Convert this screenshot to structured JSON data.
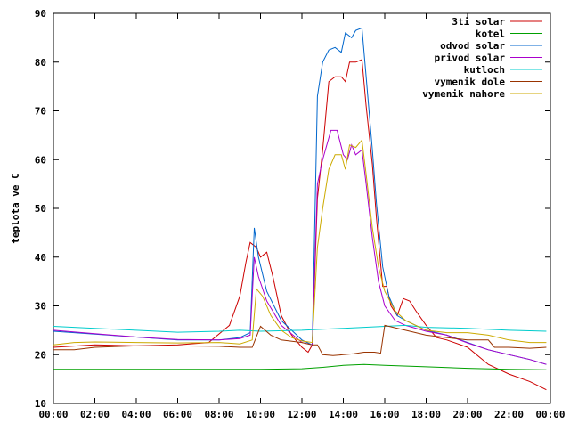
{
  "chart_data": {
    "type": "line",
    "title": "",
    "xlabel": "",
    "ylabel": "teplota ve C",
    "xlim": [
      0,
      24
    ],
    "ylim": [
      10,
      90
    ],
    "grid": false,
    "legend_position": "top-right",
    "x_ticks": [
      {
        "value": 0,
        "label": "00:00"
      },
      {
        "value": 2,
        "label": "02:00"
      },
      {
        "value": 4,
        "label": "04:00"
      },
      {
        "value": 6,
        "label": "06:00"
      },
      {
        "value": 8,
        "label": "08:00"
      },
      {
        "value": 10,
        "label": "10:00"
      },
      {
        "value": 12,
        "label": "12:00"
      },
      {
        "value": 14,
        "label": "14:00"
      },
      {
        "value": 16,
        "label": "16:00"
      },
      {
        "value": 18,
        "label": "18:00"
      },
      {
        "value": 20,
        "label": "20:00"
      },
      {
        "value": 22,
        "label": "22:00"
      },
      {
        "value": 24,
        "label": "00:00"
      }
    ],
    "y_ticks": [
      {
        "value": 10,
        "label": "10"
      },
      {
        "value": 20,
        "label": "20"
      },
      {
        "value": 30,
        "label": "30"
      },
      {
        "value": 40,
        "label": "40"
      },
      {
        "value": 50,
        "label": "50"
      },
      {
        "value": 60,
        "label": "60"
      },
      {
        "value": 70,
        "label": "70"
      },
      {
        "value": 80,
        "label": "80"
      },
      {
        "value": 90,
        "label": "90"
      }
    ],
    "series": [
      {
        "name": "3ti solar",
        "color": "#cc0000",
        "points": [
          [
            0,
            21.5
          ],
          [
            2,
            22
          ],
          [
            4,
            21.8
          ],
          [
            6,
            22
          ],
          [
            7.5,
            22.5
          ],
          [
            8.5,
            26
          ],
          [
            9,
            32
          ],
          [
            9.3,
            39
          ],
          [
            9.5,
            43
          ],
          [
            9.8,
            42
          ],
          [
            10,
            40
          ],
          [
            10.3,
            41
          ],
          [
            10.6,
            36
          ],
          [
            11,
            28
          ],
          [
            11.5,
            24
          ],
          [
            12,
            21.5
          ],
          [
            12.3,
            20.5
          ],
          [
            12.5,
            22
          ],
          [
            12.75,
            52
          ],
          [
            13,
            62
          ],
          [
            13.3,
            76
          ],
          [
            13.6,
            77
          ],
          [
            13.9,
            77
          ],
          [
            14.1,
            76
          ],
          [
            14.3,
            80
          ],
          [
            14.6,
            80
          ],
          [
            14.9,
            80.5
          ],
          [
            15.1,
            71
          ],
          [
            15.4,
            59
          ],
          [
            15.6,
            48
          ],
          [
            15.9,
            34
          ],
          [
            16.1,
            34
          ],
          [
            16.3,
            30
          ],
          [
            16.6,
            28
          ],
          [
            16.9,
            31.5
          ],
          [
            17.2,
            31
          ],
          [
            17.5,
            29
          ],
          [
            18,
            26
          ],
          [
            18.5,
            23.5
          ],
          [
            19,
            23
          ],
          [
            20,
            21.5
          ],
          [
            21,
            18
          ],
          [
            22,
            16
          ],
          [
            23,
            14.5
          ],
          [
            23.8,
            12.8
          ]
        ]
      },
      {
        "name": "kotel",
        "color": "#00a000",
        "points": [
          [
            0,
            17
          ],
          [
            4,
            17
          ],
          [
            8,
            17
          ],
          [
            10,
            17
          ],
          [
            12,
            17.1
          ],
          [
            13,
            17.4
          ],
          [
            14,
            17.8
          ],
          [
            15,
            18
          ],
          [
            16,
            17.8
          ],
          [
            18,
            17.5
          ],
          [
            20,
            17.2
          ],
          [
            22,
            17
          ],
          [
            23.8,
            16.9
          ]
        ]
      },
      {
        "name": "odvod solar",
        "color": "#0066cc",
        "points": [
          [
            0,
            24.8
          ],
          [
            2,
            24.2
          ],
          [
            4,
            23.6
          ],
          [
            6,
            23
          ],
          [
            8,
            23
          ],
          [
            9,
            23.5
          ],
          [
            9.5,
            24.5
          ],
          [
            9.7,
            46
          ],
          [
            9.9,
            40
          ],
          [
            10.3,
            33
          ],
          [
            11,
            27
          ],
          [
            12,
            23
          ],
          [
            12.5,
            22
          ],
          [
            12.75,
            73
          ],
          [
            13,
            80
          ],
          [
            13.3,
            82.5
          ],
          [
            13.6,
            83
          ],
          [
            13.9,
            82
          ],
          [
            14.1,
            86
          ],
          [
            14.4,
            85
          ],
          [
            14.6,
            86.5
          ],
          [
            14.9,
            87
          ],
          [
            15.1,
            77
          ],
          [
            15.4,
            62
          ],
          [
            15.6,
            51
          ],
          [
            15.9,
            38
          ],
          [
            16.2,
            32
          ],
          [
            16.6,
            28
          ],
          [
            17,
            27
          ],
          [
            18,
            25
          ],
          [
            19,
            24
          ],
          [
            20,
            22.5
          ],
          [
            21,
            21
          ],
          [
            22,
            20
          ],
          [
            23,
            19
          ],
          [
            23.8,
            18
          ]
        ]
      },
      {
        "name": "privod solar",
        "color": "#aa00cc",
        "points": [
          [
            0,
            25
          ],
          [
            2,
            24.3
          ],
          [
            4,
            23.6
          ],
          [
            6,
            23.1
          ],
          [
            8,
            23
          ],
          [
            9,
            23.3
          ],
          [
            9.5,
            24
          ],
          [
            9.7,
            40
          ],
          [
            9.9,
            36
          ],
          [
            10.3,
            31
          ],
          [
            11,
            26
          ],
          [
            12,
            22.5
          ],
          [
            12.5,
            22
          ],
          [
            12.75,
            55
          ],
          [
            13,
            60
          ],
          [
            13.4,
            66
          ],
          [
            13.7,
            66
          ],
          [
            14,
            61
          ],
          [
            14.2,
            60
          ],
          [
            14.4,
            63
          ],
          [
            14.6,
            61
          ],
          [
            14.9,
            62
          ],
          [
            15.1,
            55
          ],
          [
            15.4,
            44
          ],
          [
            15.7,
            35
          ],
          [
            16,
            30
          ],
          [
            16.5,
            27
          ],
          [
            17,
            26
          ],
          [
            18,
            24.8
          ],
          [
            19,
            24
          ],
          [
            20,
            22.4
          ],
          [
            21,
            21
          ],
          [
            22,
            20
          ],
          [
            23,
            19
          ],
          [
            23.8,
            18
          ]
        ]
      },
      {
        "name": "kutloch",
        "color": "#00cccc",
        "points": [
          [
            0,
            25.8
          ],
          [
            2,
            25.4
          ],
          [
            4,
            25
          ],
          [
            6,
            24.6
          ],
          [
            8,
            24.8
          ],
          [
            9,
            25
          ],
          [
            10,
            24.8
          ],
          [
            12,
            25
          ],
          [
            13,
            25.2
          ],
          [
            14,
            25.4
          ],
          [
            15,
            25.6
          ],
          [
            16,
            25.8
          ],
          [
            17,
            26
          ],
          [
            18,
            25.6
          ],
          [
            20,
            25.4
          ],
          [
            22,
            25
          ],
          [
            23.8,
            24.8
          ]
        ]
      },
      {
        "name": "vymenik dole",
        "color": "#993300",
        "points": [
          [
            0,
            21
          ],
          [
            1,
            21
          ],
          [
            2,
            21.5
          ],
          [
            4,
            21.8
          ],
          [
            6,
            21.8
          ],
          [
            8,
            21.7
          ],
          [
            9,
            21.5
          ],
          [
            9.6,
            21.5
          ],
          [
            10,
            25.8
          ],
          [
            10.5,
            24
          ],
          [
            11,
            23
          ],
          [
            12,
            22.5
          ],
          [
            12.5,
            22
          ],
          [
            12.75,
            22
          ],
          [
            13,
            20
          ],
          [
            13.5,
            19.8
          ],
          [
            14,
            20
          ],
          [
            14.5,
            20.2
          ],
          [
            15,
            20.5
          ],
          [
            15.5,
            20.5
          ],
          [
            15.8,
            20.3
          ],
          [
            16,
            26
          ],
          [
            16.5,
            25.5
          ],
          [
            17,
            25
          ],
          [
            18,
            24
          ],
          [
            19,
            23.5
          ],
          [
            20,
            23
          ],
          [
            21,
            23
          ],
          [
            21.3,
            21.5
          ],
          [
            22,
            21.5
          ],
          [
            23,
            21.3
          ],
          [
            23.8,
            21.5
          ]
        ]
      },
      {
        "name": "vymenik nahore",
        "color": "#ccaa00",
        "points": [
          [
            0,
            22
          ],
          [
            1,
            22.5
          ],
          [
            2,
            22.6
          ],
          [
            4,
            22.5
          ],
          [
            6,
            22.4
          ],
          [
            8,
            22.5
          ],
          [
            9,
            22.2
          ],
          [
            9.6,
            23
          ],
          [
            9.8,
            33.5
          ],
          [
            10.1,
            32
          ],
          [
            10.5,
            28
          ],
          [
            11,
            25
          ],
          [
            11.5,
            23.5
          ],
          [
            12,
            22.8
          ],
          [
            12.5,
            22.5
          ],
          [
            12.75,
            42
          ],
          [
            13,
            50
          ],
          [
            13.3,
            58
          ],
          [
            13.6,
            61
          ],
          [
            13.9,
            61
          ],
          [
            14.1,
            58
          ],
          [
            14.3,
            63
          ],
          [
            14.6,
            62.5
          ],
          [
            14.9,
            64
          ],
          [
            15.1,
            57
          ],
          [
            15.4,
            46
          ],
          [
            15.7,
            38
          ],
          [
            16,
            33
          ],
          [
            16.5,
            29
          ],
          [
            17,
            27
          ],
          [
            17.5,
            26
          ],
          [
            18,
            25
          ],
          [
            19,
            24.5
          ],
          [
            20,
            24.5
          ],
          [
            21,
            24
          ],
          [
            22,
            23
          ],
          [
            23,
            22.5
          ],
          [
            23.8,
            22.5
          ]
        ]
      }
    ]
  }
}
